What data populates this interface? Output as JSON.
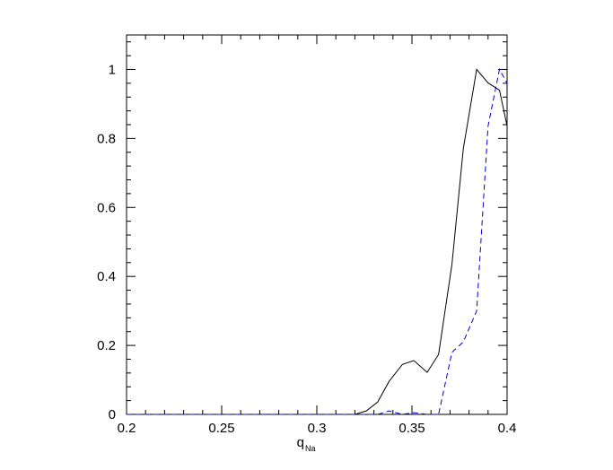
{
  "chart_data": {
    "type": "line",
    "xlabel": {
      "main": "q",
      "sub": "Na"
    },
    "xlim": [
      0.2,
      0.4
    ],
    "xticks": [
      0.2,
      0.25,
      0.3,
      0.35,
      0.4
    ],
    "ylim": [
      0,
      1.1
    ],
    "yticks": [
      0,
      0.2,
      0.4,
      0.6,
      0.8,
      1
    ],
    "series": [
      {
        "color": "#000000",
        "dashed": false,
        "x": [
          0.2,
          0.32,
          0.326,
          0.332,
          0.338,
          0.345,
          0.351,
          0.358,
          0.364,
          0.371,
          0.377,
          0.384,
          0.39,
          0.396,
          0.4
        ],
        "values": [
          0,
          0,
          0.01,
          0.036,
          0.096,
          0.145,
          0.156,
          0.122,
          0.174,
          0.434,
          0.771,
          1,
          0.961,
          0.94,
          0.836
        ]
      },
      {
        "color": "#0000cc",
        "dashed": true,
        "x": [
          0.2,
          0.332,
          0.338,
          0.345,
          0.351,
          0.358,
          0.364,
          0.371,
          0.377,
          0.384,
          0.39,
          0.396,
          0.4
        ],
        "values": [
          0,
          0,
          0.01,
          0,
          0.005,
          0,
          0,
          0.18,
          0.21,
          0.3,
          0.836,
          1,
          0.96
        ]
      }
    ]
  }
}
